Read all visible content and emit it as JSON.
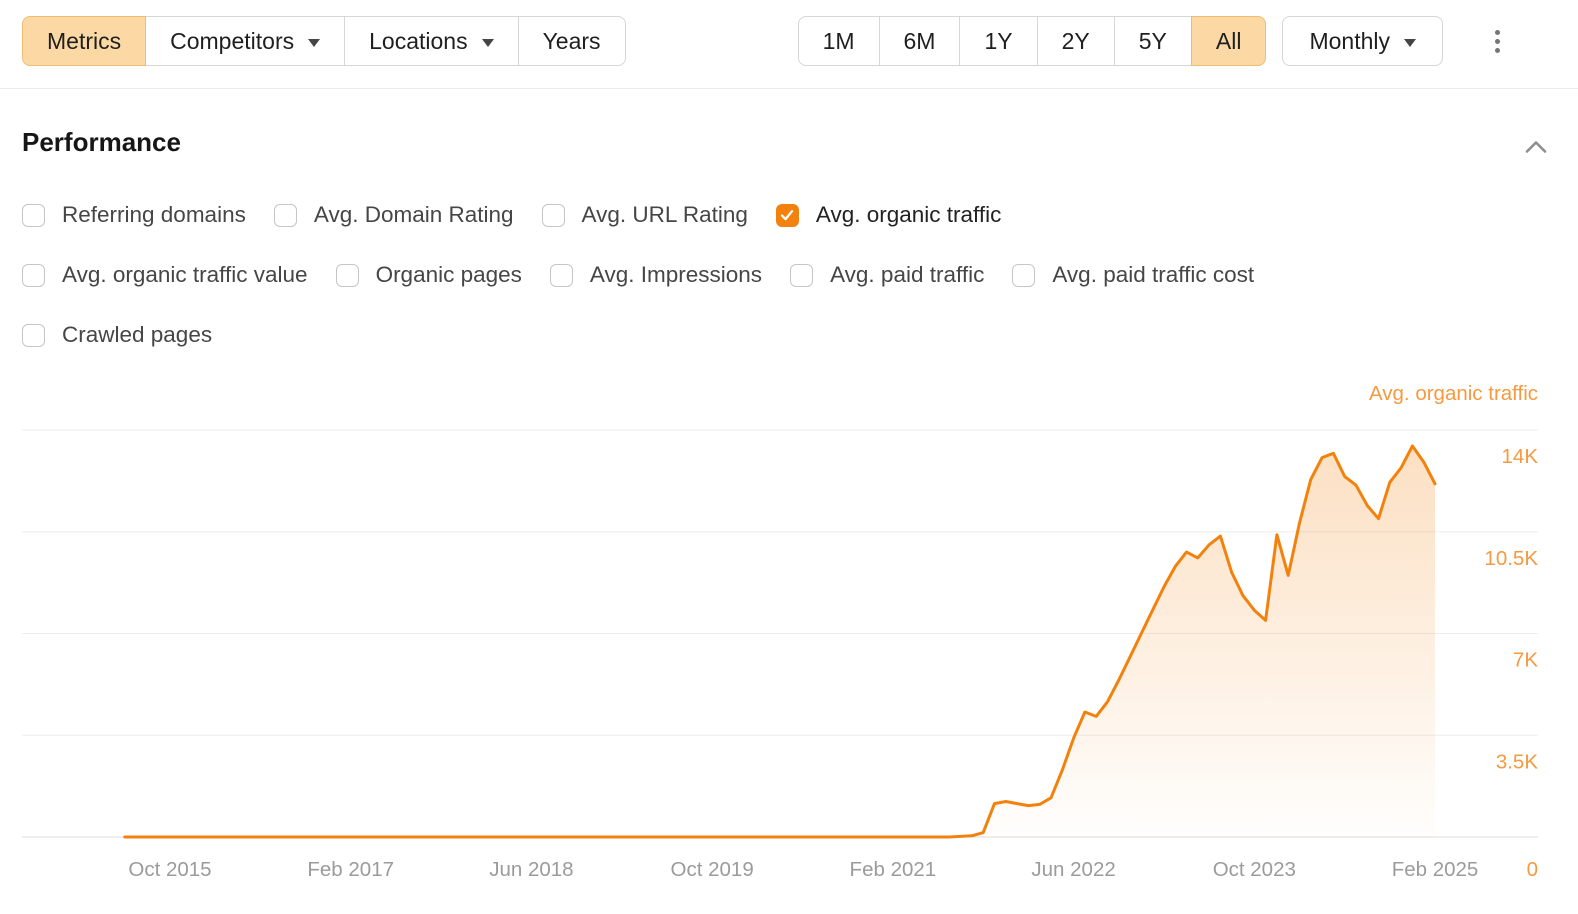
{
  "colors": {
    "accent": "#f2820d",
    "axis_label_orange": "#f59a41",
    "x_label_gray": "#9b9b9b",
    "selected_button_bg": "#fcd9a4",
    "selected_button_border": "#eebd72",
    "gridline": "#ededed",
    "baseline": "#dcdcdc"
  },
  "toolbar": {
    "view_tabs": [
      {
        "label": "Metrics",
        "selected": true,
        "caret": false
      },
      {
        "label": "Competitors",
        "selected": false,
        "caret": true
      },
      {
        "label": "Locations",
        "selected": false,
        "caret": true
      },
      {
        "label": "Years",
        "selected": false,
        "caret": false
      }
    ],
    "period_tabs": [
      {
        "label": "1M",
        "selected": false,
        "caret": false
      },
      {
        "label": "6M",
        "selected": false,
        "caret": false
      },
      {
        "label": "1Y",
        "selected": false,
        "caret": false
      },
      {
        "label": "2Y",
        "selected": false,
        "caret": false
      },
      {
        "label": "5Y",
        "selected": false,
        "caret": false
      },
      {
        "label": "All",
        "selected": true,
        "caret": false
      }
    ],
    "granularity": {
      "label": "Monthly"
    },
    "more_menu_icon": "kebab-menu"
  },
  "performance": {
    "title": "Performance",
    "collapse_icon": "chevron-up",
    "metrics": [
      {
        "label": "Referring domains",
        "checked": false
      },
      {
        "label": "Avg. Domain Rating",
        "checked": false
      },
      {
        "label": "Avg. URL Rating",
        "checked": false
      },
      {
        "label": "Avg. organic traffic",
        "checked": true
      },
      {
        "label": "Avg. organic traffic value",
        "checked": false
      },
      {
        "label": "Organic pages",
        "checked": false
      },
      {
        "label": "Avg. Impressions",
        "checked": false
      },
      {
        "label": "Avg. paid traffic",
        "checked": false
      },
      {
        "label": "Avg. paid traffic cost",
        "checked": false
      },
      {
        "label": "Crawled pages",
        "checked": false
      }
    ],
    "rows": [
      [
        0,
        1,
        2,
        3
      ],
      [
        4,
        5,
        6,
        7,
        8
      ],
      [
        9
      ]
    ]
  },
  "chart_data": {
    "type": "area",
    "title": "Avg. organic traffic",
    "series_name": "Avg. organic traffic",
    "interval": "month",
    "start": "2015-06",
    "end": "2025-02",
    "ylim": [
      0,
      15700
    ],
    "grid": true,
    "legend_position": "top-right",
    "y_ticks": [
      {
        "label": "14K",
        "value": 14000
      },
      {
        "label": "10.5K",
        "value": 10500
      },
      {
        "label": "7K",
        "value": 7000
      },
      {
        "label": "3.5K",
        "value": 3500
      },
      {
        "label": "0",
        "value": 0
      }
    ],
    "x_ticks": [
      {
        "label": "Oct 2015",
        "month_index": 4
      },
      {
        "label": "Feb 2017",
        "month_index": 20
      },
      {
        "label": "Jun 2018",
        "month_index": 36
      },
      {
        "label": "Oct 2019",
        "month_index": 52
      },
      {
        "label": "Feb 2021",
        "month_index": 68
      },
      {
        "label": "Jun 2022",
        "month_index": 84
      },
      {
        "label": "Oct 2023",
        "month_index": 100
      },
      {
        "label": "Feb 2025",
        "month_index": 116
      }
    ],
    "values": [
      0,
      0,
      0,
      0,
      0,
      0,
      0,
      0,
      0,
      0,
      0,
      0,
      0,
      0,
      0,
      0,
      0,
      0,
      0,
      0,
      0,
      0,
      0,
      0,
      0,
      0,
      0,
      0,
      0,
      0,
      0,
      0,
      0,
      0,
      0,
      0,
      0,
      0,
      0,
      0,
      0,
      0,
      0,
      0,
      0,
      0,
      0,
      0,
      0,
      0,
      0,
      0,
      0,
      0,
      0,
      0,
      0,
      0,
      0,
      0,
      0,
      0,
      0,
      0,
      0,
      0,
      0,
      0,
      0,
      0,
      0,
      0,
      0,
      0,
      20,
      40,
      150,
      1150,
      1220,
      1150,
      1080,
      1120,
      1350,
      2300,
      3400,
      4300,
      4150,
      4650,
      5400,
      6200,
      7000,
      7800,
      8600,
      9300,
      9800,
      9600,
      10050,
      10350,
      9100,
      8300,
      7800,
      7450,
      10400,
      9000,
      10800,
      12300,
      13050,
      13200,
      12400,
      12100,
      11400,
      10950,
      12200,
      12700,
      13450,
      12900,
      12150
    ]
  }
}
